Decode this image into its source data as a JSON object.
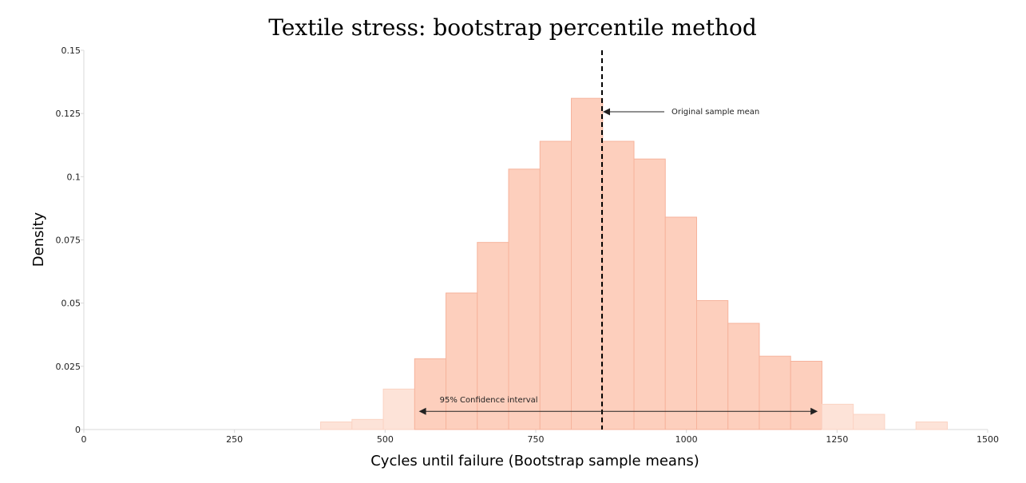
{
  "chart_data": {
    "type": "bar",
    "title": "Textile stress: bootstrap percentile method",
    "xlabel": "Cycles until failure (Bootstrap sample means)",
    "ylabel": "Density",
    "xlim": [
      0,
      1500
    ],
    "ylim": [
      0,
      0.15
    ],
    "x_ticks": [
      "0",
      "250",
      "500",
      "750",
      "1000",
      "1250",
      "1500"
    ],
    "y_ticks": [
      "0",
      "0.025",
      "0.05",
      "0.075",
      "0.1",
      "0.125",
      "0.15"
    ],
    "bins": [
      {
        "x0": 393,
        "x1": 445,
        "density": 0.003,
        "in_interval": false
      },
      {
        "x0": 445,
        "x1": 497,
        "density": 0.004,
        "in_interval": false
      },
      {
        "x0": 497,
        "x1": 549,
        "density": 0.016,
        "in_interval": false
      },
      {
        "x0": 549,
        "x1": 601,
        "density": 0.028,
        "in_interval": true
      },
      {
        "x0": 601,
        "x1": 653,
        "density": 0.054,
        "in_interval": true
      },
      {
        "x0": 653,
        "x1": 705,
        "density": 0.074,
        "in_interval": true
      },
      {
        "x0": 705,
        "x1": 757,
        "density": 0.103,
        "in_interval": true
      },
      {
        "x0": 757,
        "x1": 809,
        "density": 0.114,
        "in_interval": true
      },
      {
        "x0": 809,
        "x1": 861,
        "density": 0.131,
        "in_interval": true
      },
      {
        "x0": 861,
        "x1": 913,
        "density": 0.114,
        "in_interval": true
      },
      {
        "x0": 913,
        "x1": 965,
        "density": 0.107,
        "in_interval": true
      },
      {
        "x0": 965,
        "x1": 1017,
        "density": 0.084,
        "in_interval": true
      },
      {
        "x0": 1017,
        "x1": 1069,
        "density": 0.051,
        "in_interval": true
      },
      {
        "x0": 1069,
        "x1": 1121,
        "density": 0.042,
        "in_interval": true
      },
      {
        "x0": 1121,
        "x1": 1173,
        "density": 0.029,
        "in_interval": true
      },
      {
        "x0": 1173,
        "x1": 1225,
        "density": 0.027,
        "in_interval": true
      },
      {
        "x0": 1225,
        "x1": 1277,
        "density": 0.01,
        "in_interval": false
      },
      {
        "x0": 1277,
        "x1": 1329,
        "density": 0.006,
        "in_interval": false
      },
      {
        "x0": 1329,
        "x1": 1381,
        "density": 0.0,
        "in_interval": false
      },
      {
        "x0": 1381,
        "x1": 1433,
        "density": 0.003,
        "in_interval": false
      }
    ],
    "mean": 860,
    "ci": [
      556,
      1218
    ],
    "annotations": {
      "mean_label": "Original sample mean",
      "ci_label": "95% Confidence interval"
    },
    "colors": {
      "bar_inner": "#fdcfbd",
      "bar_outer": "#fde3d8",
      "bar_edge": "#f6b39c",
      "axis": "#d8d8d8",
      "mean_line": "#000000"
    }
  }
}
